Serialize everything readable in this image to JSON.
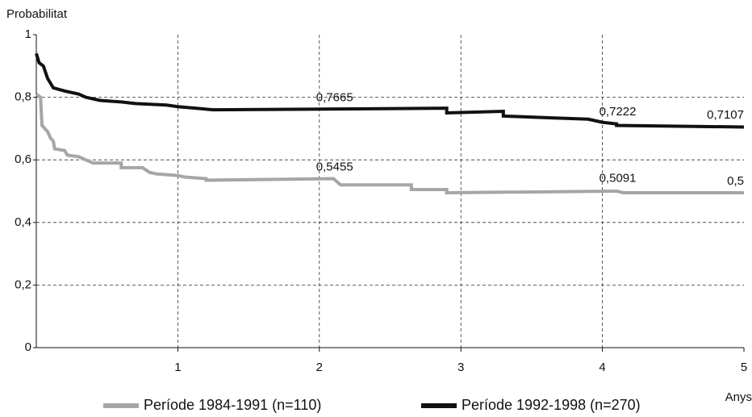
{
  "chart_data": {
    "type": "line",
    "ylabel": "Probabilitat",
    "xlabel": "Anys",
    "xlim": [
      0,
      5
    ],
    "ylim": [
      0,
      1
    ],
    "xticks": [
      1,
      2,
      3,
      4,
      5
    ],
    "yticks": [
      0,
      {
        "value": 0.2,
        "label": "0,2"
      },
      {
        "value": 0.4,
        "label": "0,4"
      },
      {
        "value": 0.6,
        "label": "0,6"
      },
      {
        "value": 0.8,
        "label": "0,8"
      },
      1
    ],
    "grid": true,
    "legend": "bottom",
    "series": [
      {
        "name": "Període 1984-1991 (n=110)",
        "color": "#a6a6a6",
        "x": [
          0,
          0.03,
          0.04,
          0.08,
          0.1,
          0.12,
          0.13,
          0.2,
          0.22,
          0.3,
          0.35,
          0.4,
          0.6,
          0.6,
          0.75,
          0.8,
          0.85,
          1.0,
          1.05,
          1.2,
          1.2,
          2.1,
          2.15,
          2.65,
          2.65,
          2.9,
          2.9,
          4.1,
          4.15,
          5
        ],
        "values": [
          0.81,
          0.8,
          0.71,
          0.69,
          0.67,
          0.66,
          0.635,
          0.63,
          0.615,
          0.61,
          0.6,
          0.59,
          0.59,
          0.575,
          0.575,
          0.56,
          0.555,
          0.55,
          0.545,
          0.54,
          0.535,
          0.54,
          0.52,
          0.52,
          0.505,
          0.505,
          0.495,
          0.5,
          0.495,
          0.495
        ]
      },
      {
        "name": "Període 1992-1998 (n=270)",
        "color": "#111111",
        "x": [
          0,
          0.02,
          0.05,
          0.08,
          0.12,
          0.2,
          0.3,
          0.35,
          0.45,
          0.6,
          0.7,
          0.92,
          1.0,
          1.25,
          2.9,
          2.9,
          3.3,
          3.3,
          3.6,
          3.9,
          4.0,
          4.1,
          4.1,
          5
        ],
        "values": [
          0.94,
          0.91,
          0.9,
          0.86,
          0.83,
          0.82,
          0.81,
          0.8,
          0.79,
          0.785,
          0.78,
          0.775,
          0.77,
          0.76,
          0.765,
          0.75,
          0.755,
          0.74,
          0.735,
          0.73,
          0.72,
          0.715,
          0.71,
          0.705
        ]
      }
    ],
    "annotations": [
      {
        "x": 2,
        "value": 0.7665,
        "label": "0,7665"
      },
      {
        "x": 2,
        "value": 0.5455,
        "label": "0,5455"
      },
      {
        "x": 4,
        "value": 0.7222,
        "label": "0,7222"
      },
      {
        "x": 4,
        "value": 0.5091,
        "label": "0,5091"
      },
      {
        "x": 5,
        "value": 0.7107,
        "label": "0,7107"
      },
      {
        "x": 5,
        "value": 0.5,
        "label": "0,5"
      }
    ]
  }
}
